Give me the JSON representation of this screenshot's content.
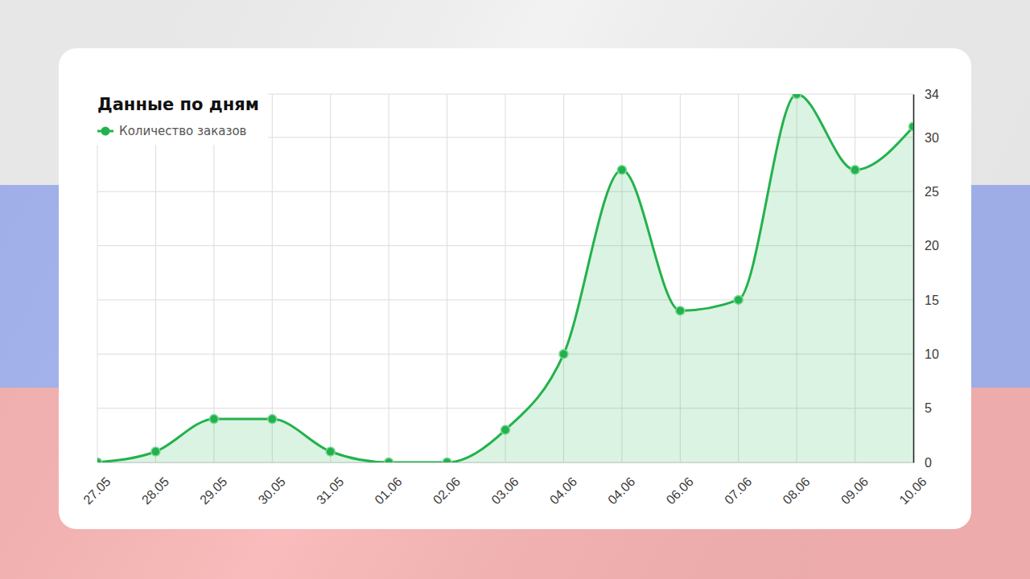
{
  "chart_data": {
    "type": "area",
    "title": "Данные по дням",
    "categories": [
      "27.05",
      "28.05",
      "29.05",
      "30.05",
      "31.05",
      "01.06",
      "02.06",
      "03.06",
      "04.06",
      "04.06",
      "06.06",
      "07.06",
      "08.06",
      "09.06",
      "10.06"
    ],
    "series": [
      {
        "name": "Количество заказов",
        "color": "#22b24c",
        "marker": "circle",
        "values": [
          0,
          1,
          4,
          4,
          1,
          0,
          0,
          3,
          10,
          27,
          14,
          15,
          34,
          27,
          31
        ]
      }
    ],
    "ylim": [
      0,
      34
    ],
    "yticks": [
      0,
      5,
      10,
      15,
      20,
      25,
      30,
      34
    ],
    "grid": true,
    "legend": "upper left"
  }
}
